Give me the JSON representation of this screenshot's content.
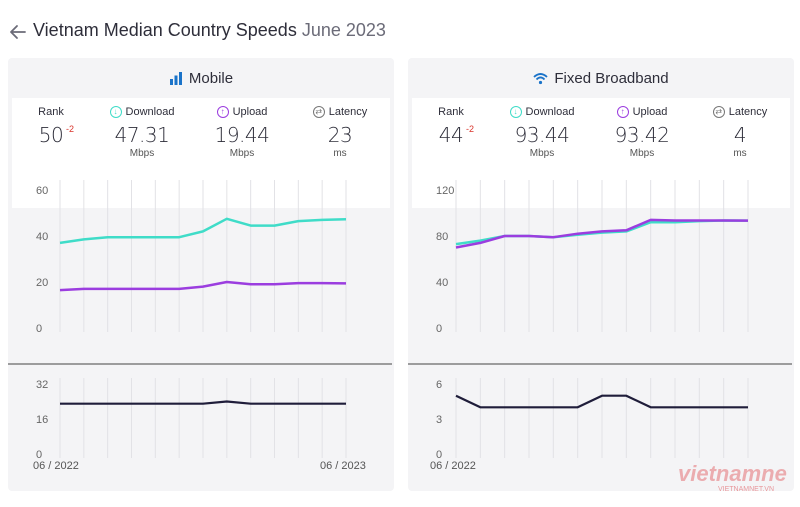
{
  "header": {
    "title_main": "Vietnam Median Country Speeds",
    "title_date": "June 2023"
  },
  "colors": {
    "download": "#3fdcc8",
    "upload": "#9b3ddf",
    "latency": "#1f1d3a",
    "rank_change": "#d9342b"
  },
  "panels": [
    {
      "title": "Mobile",
      "icon": "signal-bars-icon",
      "stats": {
        "rank": {
          "label": "Rank",
          "value": "50",
          "change": "-2"
        },
        "download": {
          "label": "Download",
          "value": "47.31",
          "unit": "Mbps"
        },
        "upload": {
          "label": "Upload",
          "value": "19.44",
          "unit": "Mbps"
        },
        "latency": {
          "label": "Latency",
          "value": "23",
          "unit": "ms"
        }
      },
      "x_start": "06 / 2022",
      "x_end": "06 / 2023"
    },
    {
      "title": "Fixed Broadband",
      "icon": "wifi-icon",
      "stats": {
        "rank": {
          "label": "Rank",
          "value": "44",
          "change": "-2"
        },
        "download": {
          "label": "Download",
          "value": "93.44",
          "unit": "Mbps"
        },
        "upload": {
          "label": "Upload",
          "value": "93.42",
          "unit": "Mbps"
        },
        "latency": {
          "label": "Latency",
          "value": "4",
          "unit": "ms"
        }
      },
      "x_start": "06 / 2022",
      "x_end": ""
    }
  ],
  "chart_data": [
    {
      "type": "line",
      "panel": "Mobile",
      "x": [
        "06/2022",
        "07/2022",
        "08/2022",
        "09/2022",
        "10/2022",
        "11/2022",
        "12/2022",
        "01/2023",
        "02/2023",
        "03/2023",
        "04/2023",
        "05/2023",
        "06/2023"
      ],
      "ylim": [
        0,
        60
      ],
      "yticks": [
        0,
        20,
        40,
        60
      ],
      "series": [
        {
          "key": "download",
          "values": [
            37,
            38.5,
            39.5,
            39.5,
            39.5,
            39.5,
            42,
            47.5,
            44.5,
            44.5,
            46.5,
            47,
            47.3
          ]
        },
        {
          "key": "upload",
          "values": [
            16.5,
            17,
            17,
            17,
            17,
            17,
            18,
            20,
            19,
            19,
            19.5,
            19.5,
            19.4
          ]
        }
      ]
    },
    {
      "type": "line",
      "panel": "Mobile latency",
      "x": [
        "06/2022",
        "07/2022",
        "08/2022",
        "09/2022",
        "10/2022",
        "11/2022",
        "12/2022",
        "01/2023",
        "02/2023",
        "03/2023",
        "04/2023",
        "05/2023",
        "06/2023"
      ],
      "ylim": [
        0,
        32
      ],
      "yticks": [
        0,
        16,
        32
      ],
      "series": [
        {
          "key": "latency",
          "values": [
            23,
            23,
            23,
            23,
            23,
            23,
            23,
            24,
            23,
            23,
            23,
            23,
            23
          ]
        }
      ]
    },
    {
      "type": "line",
      "panel": "Fixed Broadband",
      "x": [
        "06/2022",
        "07/2022",
        "08/2022",
        "09/2022",
        "10/2022",
        "11/2022",
        "12/2022",
        "01/2023",
        "02/2023",
        "03/2023",
        "04/2023",
        "05/2023",
        "06/2023"
      ],
      "ylim": [
        0,
        120
      ],
      "yticks": [
        0,
        40,
        80,
        120
      ],
      "series": [
        {
          "key": "download",
          "values": [
            73,
            76,
            80,
            80,
            79,
            81,
            83,
            84,
            92,
            92,
            93,
            93.5,
            93.4
          ]
        },
        {
          "key": "upload",
          "values": [
            70,
            74,
            80,
            80,
            79,
            82,
            84,
            85,
            94,
            93.5,
            93.5,
            93.5,
            93.4
          ]
        }
      ]
    },
    {
      "type": "line",
      "panel": "Fixed Broadband latency",
      "x": [
        "06/2022",
        "07/2022",
        "08/2022",
        "09/2022",
        "10/2022",
        "11/2022",
        "12/2022",
        "01/2023",
        "02/2023",
        "03/2023",
        "04/2023",
        "05/2023",
        "06/2023"
      ],
      "ylim": [
        0,
        6
      ],
      "yticks": [
        0,
        3,
        6
      ],
      "series": [
        {
          "key": "latency",
          "values": [
            5,
            4,
            4,
            4,
            4,
            4,
            5,
            5,
            4,
            4,
            4,
            4,
            4
          ]
        }
      ]
    }
  ],
  "watermark": {
    "logo_text": "vietnamnet",
    "sub_text": "VIETNAMNET.VN"
  }
}
